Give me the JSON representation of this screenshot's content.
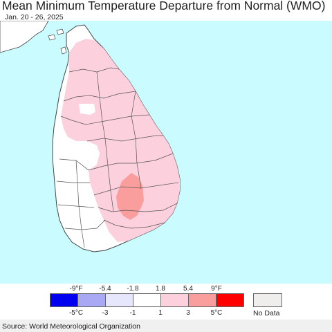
{
  "title": "Mean Minimum Temperature Departure from Normal (WMO)",
  "subtitle": "Jan. 20 - 26, 2025",
  "colors": {
    "ocean": "#c9fbff",
    "land_white": "#ffffff",
    "land_pink": "#fdd0de",
    "land_salmon": "#fa9e9d",
    "border": "#444444"
  },
  "legend": {
    "fahrenheit_ticks": [
      "-9°F",
      "-5.4",
      "-1.8",
      "1.8",
      "5.4",
      "9°F"
    ],
    "celsius_ticks": [
      "-5°C",
      "-3",
      "-1",
      "1",
      "3",
      "5°C"
    ],
    "bins": [
      {
        "color": "#0000f0"
      },
      {
        "color": "#a8a8f5"
      },
      {
        "color": "#e6e6fc"
      },
      {
        "color": "#ffffff"
      },
      {
        "color": "#fdd0de"
      },
      {
        "color": "#fa9e9d"
      },
      {
        "color": "#ff0000"
      }
    ],
    "no_data_label": "No Data",
    "no_data_color": "#f0eded"
  },
  "source": "Source: World Meteorological Organization"
}
